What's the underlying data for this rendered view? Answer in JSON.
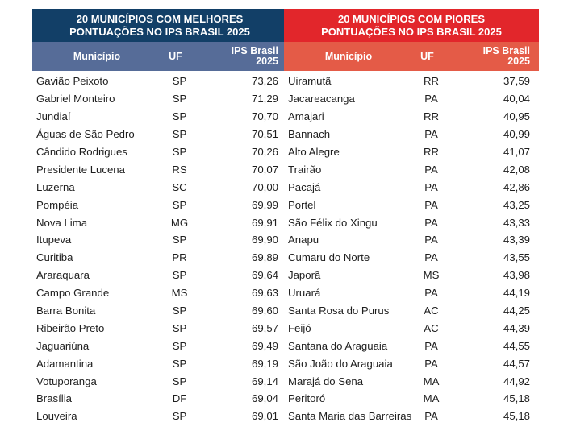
{
  "left": {
    "title_line1": "20 MUNICÍPIOS COM MELHORES",
    "title_line2": "PONTUAÇÕES NO IPS BRASIL 2025",
    "col_municipio": "Município",
    "col_uf": "UF",
    "col_ips_line1": "IPS Brasil",
    "col_ips_line2": "2025",
    "rows": [
      {
        "municipio": "Gavião Peixoto",
        "uf": "SP",
        "ips": "73,26"
      },
      {
        "municipio": "Gabriel Monteiro",
        "uf": "SP",
        "ips": "71,29"
      },
      {
        "municipio": "Jundiaí",
        "uf": "SP",
        "ips": "70,70"
      },
      {
        "municipio": "Águas de São Pedro",
        "uf": "SP",
        "ips": "70,51"
      },
      {
        "municipio": "Cândido Rodrigues",
        "uf": "SP",
        "ips": "70,26"
      },
      {
        "municipio": "Presidente Lucena",
        "uf": "RS",
        "ips": "70,07"
      },
      {
        "municipio": "Luzerna",
        "uf": "SC",
        "ips": "70,00"
      },
      {
        "municipio": "Pompéia",
        "uf": "SP",
        "ips": "69,99"
      },
      {
        "municipio": "Nova Lima",
        "uf": "MG",
        "ips": "69,91"
      },
      {
        "municipio": "Itupeva",
        "uf": "SP",
        "ips": "69,90"
      },
      {
        "municipio": "Curitiba",
        "uf": "PR",
        "ips": "69,89"
      },
      {
        "municipio": "Araraquara",
        "uf": "SP",
        "ips": "69,64"
      },
      {
        "municipio": "Campo Grande",
        "uf": "MS",
        "ips": "69,63"
      },
      {
        "municipio": "Barra Bonita",
        "uf": "SP",
        "ips": "69,60"
      },
      {
        "municipio": "Ribeirão Preto",
        "uf": "SP",
        "ips": "69,57"
      },
      {
        "municipio": "Jaguariúna",
        "uf": "SP",
        "ips": "69,49"
      },
      {
        "municipio": "Adamantina",
        "uf": "SP",
        "ips": "69,19"
      },
      {
        "municipio": "Votuporanga",
        "uf": "SP",
        "ips": "69,14"
      },
      {
        "municipio": "Brasília",
        "uf": "DF",
        "ips": "69,04"
      },
      {
        "municipio": "Louveira",
        "uf": "SP",
        "ips": "69,01"
      }
    ]
  },
  "right": {
    "title_line1": "20 MUNICÍPIOS COM PIORES",
    "title_line2": "PONTUAÇÕES NO IPS BRASIL 2025",
    "col_municipio": "Município",
    "col_uf": "UF",
    "col_ips_line1": "IPS Brasil",
    "col_ips_line2": "2025",
    "rows": [
      {
        "municipio": "Uiramutã",
        "uf": "RR",
        "ips": "37,59"
      },
      {
        "municipio": "Jacareacanga",
        "uf": "PA",
        "ips": "40,04"
      },
      {
        "municipio": "Amajari",
        "uf": "RR",
        "ips": "40,95"
      },
      {
        "municipio": "Bannach",
        "uf": "PA",
        "ips": "40,99"
      },
      {
        "municipio": "Alto Alegre",
        "uf": "RR",
        "ips": "41,07"
      },
      {
        "municipio": "Trairão",
        "uf": "PA",
        "ips": "42,08"
      },
      {
        "municipio": "Pacajá",
        "uf": "PA",
        "ips": "42,86"
      },
      {
        "municipio": "Portel",
        "uf": "PA",
        "ips": "43,25"
      },
      {
        "municipio": "São Félix do Xingu",
        "uf": "PA",
        "ips": "43,33"
      },
      {
        "municipio": "Anapu",
        "uf": "PA",
        "ips": "43,39"
      },
      {
        "municipio": "Cumaru do Norte",
        "uf": "PA",
        "ips": "43,55"
      },
      {
        "municipio": "Japorã",
        "uf": "MS",
        "ips": "43,98"
      },
      {
        "municipio": "Uruará",
        "uf": "PA",
        "ips": "44,19"
      },
      {
        "municipio": "Santa Rosa do Purus",
        "uf": "AC",
        "ips": "44,25"
      },
      {
        "municipio": "Feijó",
        "uf": "AC",
        "ips": "44,39"
      },
      {
        "municipio": "Santana do Araguaia",
        "uf": "PA",
        "ips": "44,55"
      },
      {
        "municipio": "São João do Araguaia",
        "uf": "PA",
        "ips": "44,57"
      },
      {
        "municipio": "Marajá do Sena",
        "uf": "MA",
        "ips": "44,92"
      },
      {
        "municipio": "Peritoró",
        "uf": "MA",
        "ips": "45,18"
      },
      {
        "municipio": "Santa Maria das Barreiras",
        "uf": "PA",
        "ips": "45,18"
      }
    ]
  }
}
